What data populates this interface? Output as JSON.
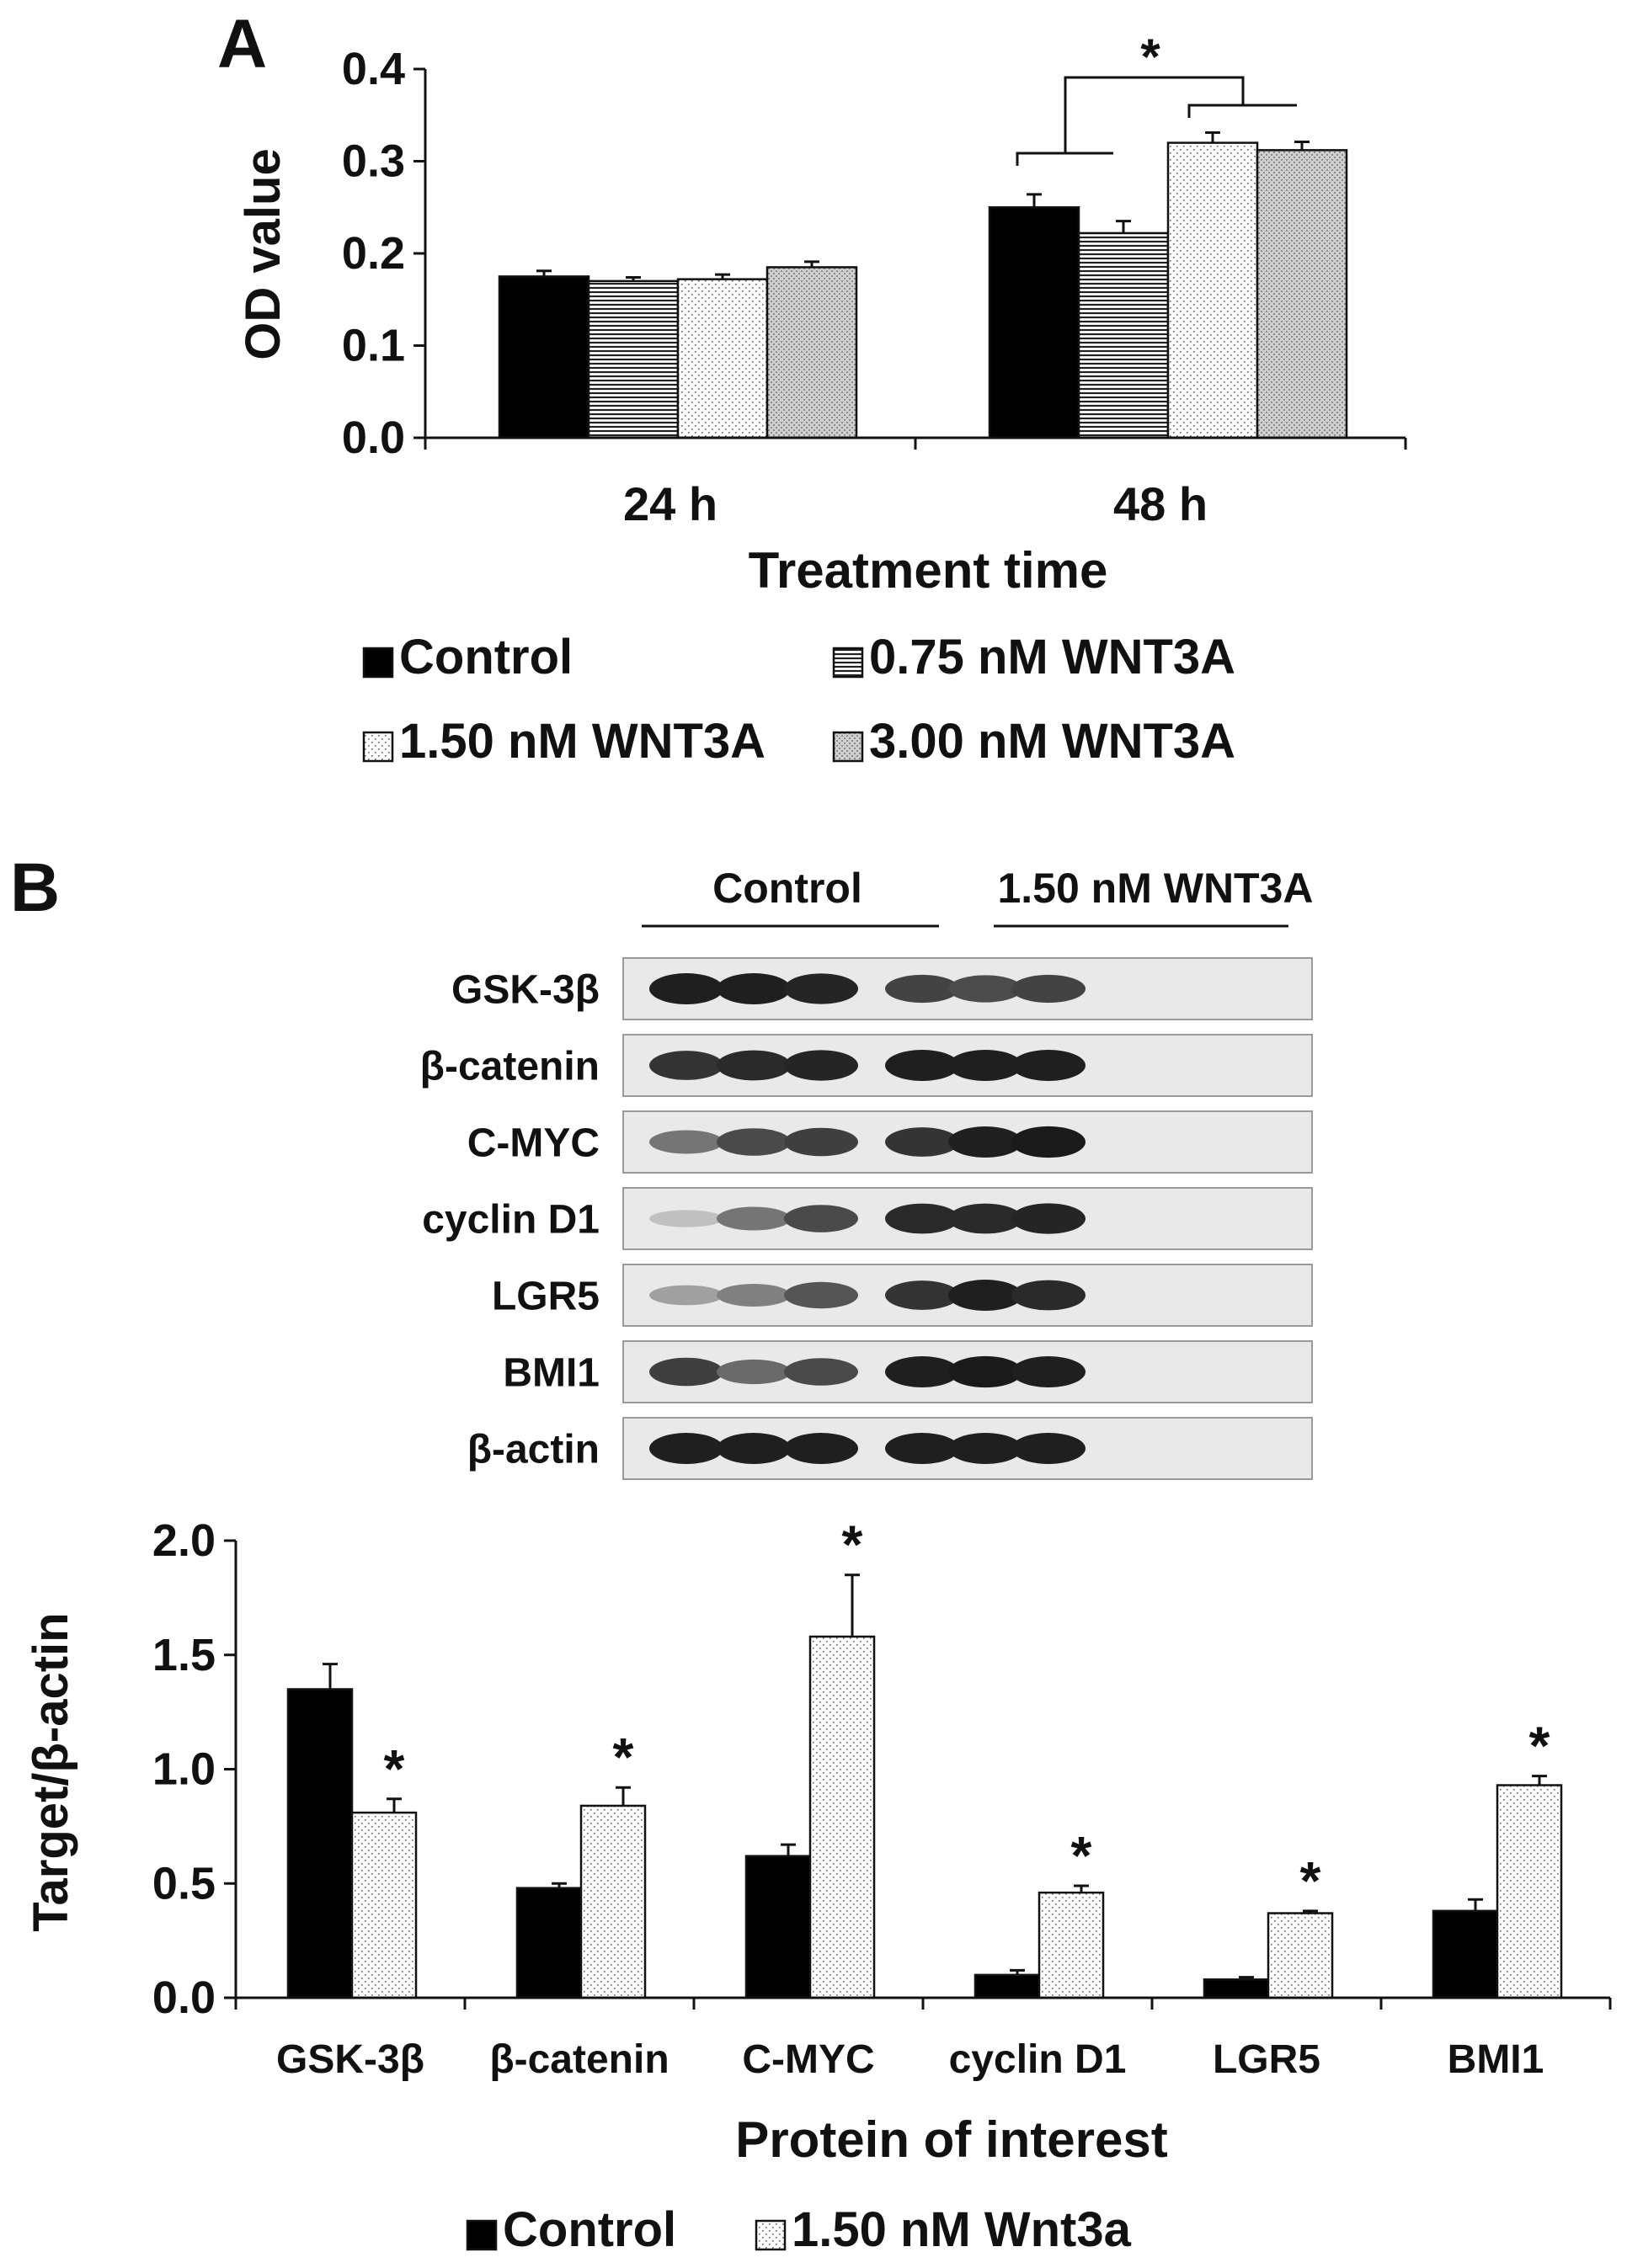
{
  "panel_a": {
    "letter": "A",
    "chart_data": {
      "type": "bar",
      "title": "",
      "ylabel": "OD value",
      "xlabel": "Treatment time",
      "categories": [
        "24 h",
        "48 h"
      ],
      "ylim": [
        0.0,
        0.4
      ],
      "yticks": [
        "0.0",
        "0.1",
        "0.2",
        "0.3",
        "0.4"
      ],
      "series": [
        {
          "name": "Control",
          "pattern": "solid",
          "values": [
            0.175,
            0.25
          ],
          "errors": [
            0.006,
            0.014
          ]
        },
        {
          "name": "0.75 nM WNT3A",
          "pattern": "hlines",
          "values": [
            0.17,
            0.222
          ],
          "errors": [
            0.004,
            0.013
          ]
        },
        {
          "name": "1.50 nM WNT3A",
          "pattern": "dots",
          "values": [
            0.172,
            0.32
          ],
          "errors": [
            0.005,
            0.011
          ]
        },
        {
          "name": "3.00 nM WNT3A",
          "pattern": "crosshatch",
          "values": [
            0.185,
            0.312
          ],
          "errors": [
            0.006,
            0.009
          ]
        }
      ],
      "annotations": [
        "*"
      ],
      "legend_placement": "bottom",
      "grid": false
    }
  },
  "panel_b": {
    "letter": "B",
    "blot": {
      "group_labels": [
        "Control",
        "1.50 nM WNT3A"
      ],
      "rows": [
        {
          "label": "GSK-3β",
          "intensity": [
            0.95,
            0.95,
            0.92,
            0.78,
            0.74,
            0.78
          ]
        },
        {
          "label": "β-catenin",
          "intensity": [
            0.85,
            0.9,
            0.92,
            0.95,
            0.95,
            0.95
          ]
        },
        {
          "label": "C-MYC",
          "intensity": [
            0.55,
            0.75,
            0.8,
            0.85,
            0.95,
            0.97
          ]
        },
        {
          "label": "cyclin D1",
          "intensity": [
            0.2,
            0.55,
            0.75,
            0.9,
            0.9,
            0.92
          ]
        },
        {
          "label": "LGR5",
          "intensity": [
            0.35,
            0.5,
            0.7,
            0.85,
            0.95,
            0.9
          ]
        },
        {
          "label": "BMI1",
          "intensity": [
            0.8,
            0.6,
            0.75,
            0.95,
            0.97,
            0.95
          ]
        },
        {
          "label": "β-actin",
          "intensity": [
            0.95,
            0.95,
            0.95,
            0.95,
            0.95,
            0.95
          ]
        }
      ]
    },
    "chart_data": {
      "type": "bar",
      "title": "",
      "ylabel": "Target/β-actin",
      "xlabel": "Protein of interest",
      "categories": [
        "GSK-3β",
        "β-catenin",
        "C-MYC",
        "cyclin D1",
        "LGR5",
        "BMI1"
      ],
      "ylim": [
        0.0,
        2.0
      ],
      "yticks": [
        "0.0",
        "0.5",
        "1.0",
        "1.5",
        "2.0"
      ],
      "series": [
        {
          "name": "Control",
          "pattern": "solid",
          "values": [
            1.35,
            0.48,
            0.62,
            0.1,
            0.08,
            0.38
          ],
          "errors": [
            0.11,
            0.02,
            0.05,
            0.02,
            0.01,
            0.05
          ]
        },
        {
          "name": "1.50 nM Wnt3a",
          "pattern": "dots",
          "values": [
            0.81,
            0.84,
            1.58,
            0.46,
            0.37,
            0.93
          ],
          "errors": [
            0.06,
            0.08,
            0.27,
            0.03,
            0.01,
            0.04
          ]
        }
      ],
      "annotations": [
        "*",
        "*",
        "*",
        "*",
        "*",
        "*"
      ],
      "legend_placement": "bottom",
      "grid": false
    }
  }
}
